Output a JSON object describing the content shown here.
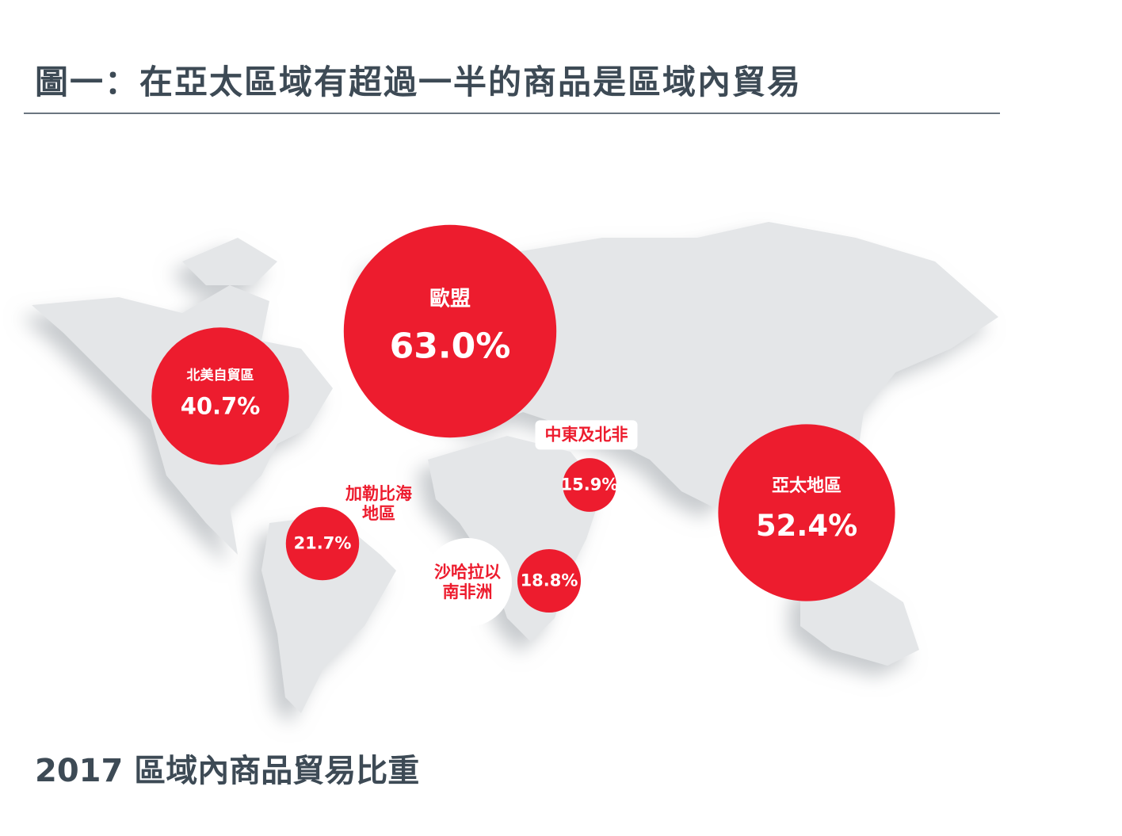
{
  "chart_data": {
    "type": "bubble",
    "title": "圖一：在亞太區域有超過一半的商品是區域內貿易",
    "subtitle": "2017 區域內商品貿易比重",
    "categories": [
      "北美自貿區",
      "歐盟",
      "中東及北非",
      "加勒比海地區",
      "沙哈拉以南非洲",
      "亞太地區"
    ],
    "values": [
      40.7,
      63.0,
      15.9,
      21.7,
      18.8,
      52.4
    ],
    "value_labels": [
      "40.7%",
      "63.0%",
      "15.9%",
      "21.7%",
      "18.8%",
      "52.4%"
    ],
    "color": "#ed1c2e"
  }
}
